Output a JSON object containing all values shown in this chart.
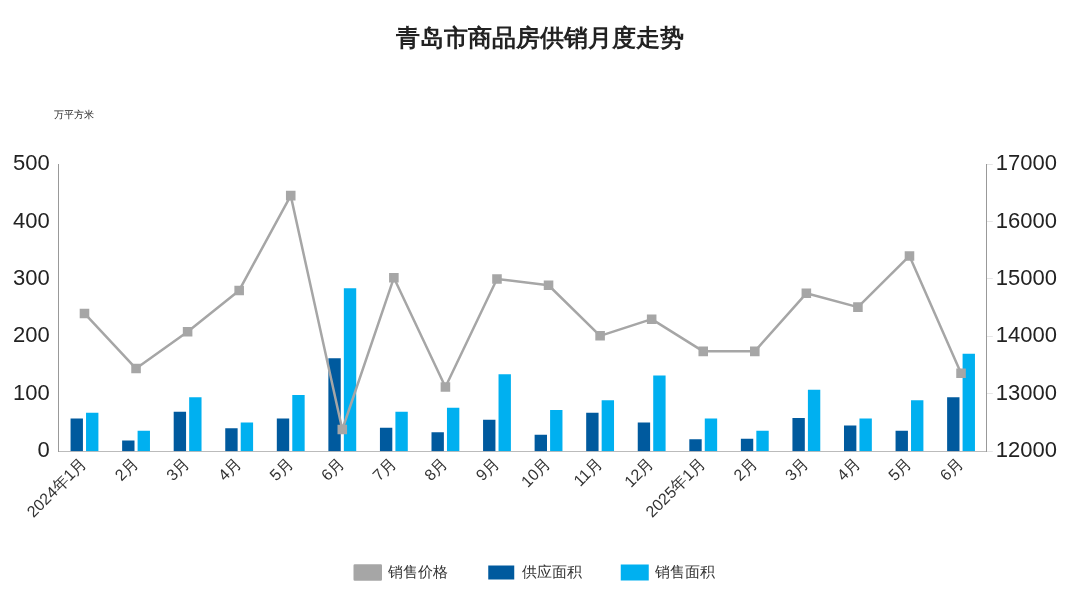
{
  "chart_data": {
    "type": "bar",
    "title": "青岛市商品房供销月度走势",
    "ylabel": "万平方米",
    "categories": [
      "2024年1月",
      "2月",
      "3月",
      "4月",
      "5月",
      "6月",
      "7月",
      "8月",
      "9月",
      "10月",
      "11月",
      "12月",
      "2025年1月",
      "2月",
      "3月",
      "4月",
      "5月",
      "6月"
    ],
    "series": [
      {
        "name": "供应面积",
        "color": "#005a9e",
        "values": [
          57,
          19,
          69,
          40,
          57,
          162,
          41,
          33,
          55,
          29,
          67,
          50,
          21,
          22,
          58,
          45,
          36,
          94
        ]
      },
      {
        "name": "销售面积",
        "color": "#00b0f0",
        "values": [
          67,
          36,
          94,
          50,
          98,
          284,
          69,
          76,
          134,
          72,
          89,
          132,
          57,
          36,
          107,
          57,
          89,
          170
        ]
      },
      {
        "name": "销售价格",
        "type": "line",
        "axis": "y2",
        "color": "#a6a6a6",
        "marker": "square",
        "values": [
          14400,
          13440,
          14080,
          14800,
          16450,
          12380,
          15020,
          13120,
          15000,
          14890,
          14010,
          14300,
          13740,
          13740,
          14750,
          14510,
          15400,
          13360
        ]
      }
    ],
    "ylim": [
      0,
      500
    ],
    "yticks": [
      0,
      100,
      200,
      300,
      400,
      500
    ],
    "y2lim": [
      12000,
      17000
    ],
    "y2ticks": [
      12000,
      13000,
      14000,
      15000,
      16000,
      17000
    ],
    "grid": false,
    "legend": "bottom"
  }
}
